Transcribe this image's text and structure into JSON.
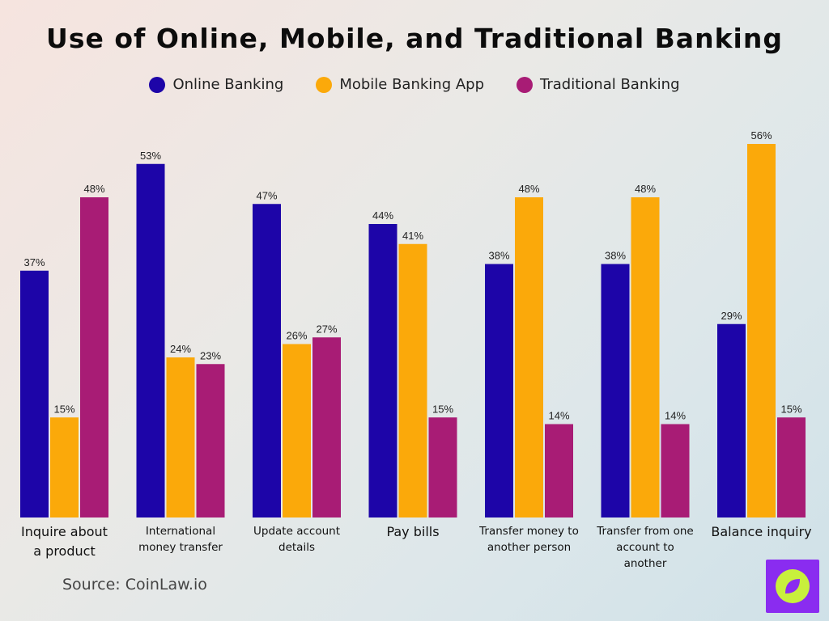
{
  "chart_data": {
    "type": "bar",
    "title": "Use of Online, Mobile, and Traditional Banking",
    "categories": [
      [
        "Inquire about",
        "a product"
      ],
      [
        "International",
        "money transfer"
      ],
      [
        "Update account",
        "details"
      ],
      [
        "Pay bills"
      ],
      [
        "Transfer money to",
        "another person"
      ],
      [
        "Transfer from one",
        "account to",
        "another"
      ],
      [
        "Balance inquiry"
      ]
    ],
    "series": [
      {
        "name": "Online Banking",
        "color": "#1d05a8",
        "values": [
          37,
          53,
          47,
          44,
          38,
          38,
          29
        ]
      },
      {
        "name": "Mobile Banking App",
        "color": "#fba90a",
        "values": [
          15,
          24,
          26,
          41,
          48,
          48,
          56
        ]
      },
      {
        "name": "Traditional Banking",
        "color": "#a81c75",
        "values": [
          48,
          23,
          27,
          15,
          14,
          14,
          15
        ]
      }
    ],
    "value_suffix": "%",
    "ylim": [
      0,
      56
    ],
    "legend_position": "top-center",
    "grid": false,
    "xlabel": "",
    "ylabel": ""
  },
  "source": "Source: CoinLaw.io",
  "logo": {
    "icon": "compass-leaf-icon",
    "bg_color": "#8a2cf0",
    "fg_color": "#c8f03c"
  }
}
